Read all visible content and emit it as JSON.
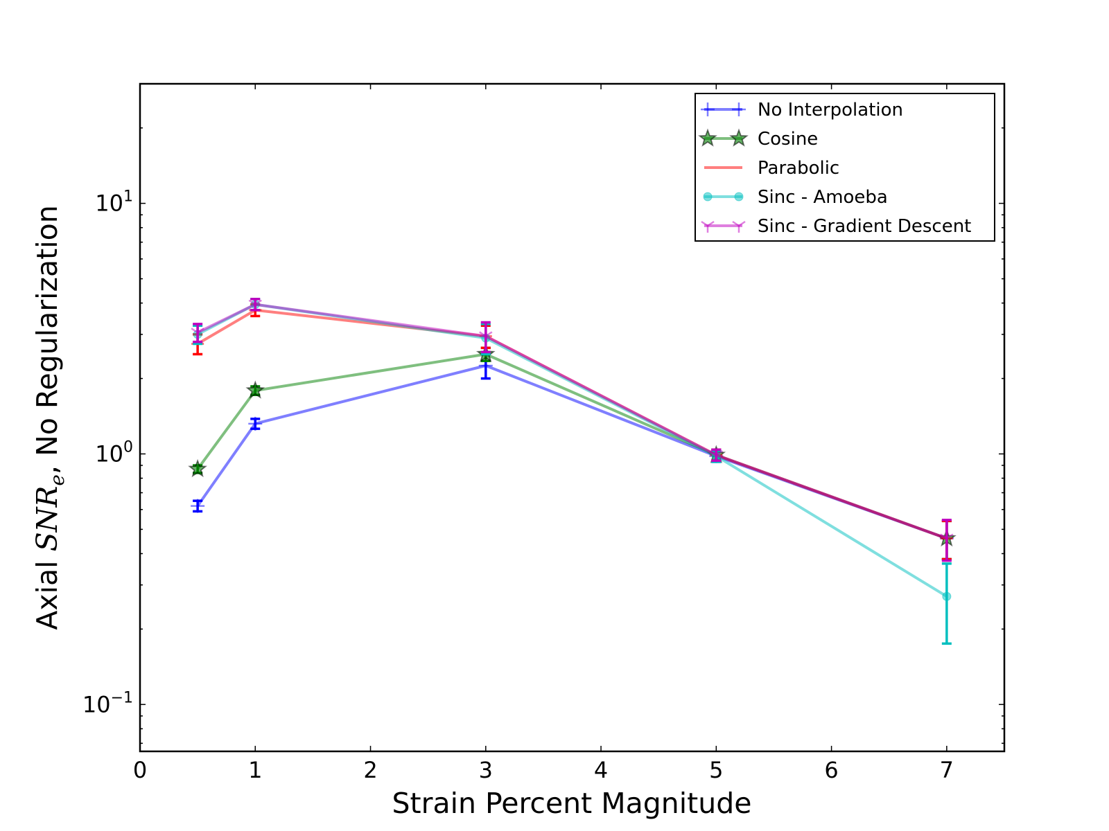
{
  "chart_data": {
    "type": "line",
    "xlabel": "Strain Percent Magnitude",
    "ylabel_prefix": "Axial ",
    "ylabel_math": "SNR",
    "ylabel_sub": "e",
    "ylabel_suffix": ", No Regularization",
    "xlim": [
      0,
      7.5
    ],
    "ylim": [
      0.065,
      30
    ],
    "yscale": "log",
    "grid": false,
    "legend_position": "top-right",
    "x_ticks": [
      0,
      1,
      2,
      3,
      4,
      5,
      6,
      7
    ],
    "x_tick_labels": [
      "0",
      "1",
      "2",
      "3",
      "4",
      "5",
      "6",
      "7"
    ],
    "y_ticks": [
      {
        "value": 0.1,
        "base": "10",
        "exp": "−1"
      },
      {
        "value": 1,
        "base": "10",
        "exp": "0"
      },
      {
        "value": 10,
        "base": "10",
        "exp": "1"
      }
    ],
    "x": [
      0.5,
      1,
      3,
      5,
      7
    ],
    "series": [
      {
        "name": "No Interpolation",
        "color": "#0000ff",
        "marker": "plus",
        "values": [
          0.62,
          1.32,
          2.25,
          0.98,
          0.46
        ],
        "errors": [
          0.03,
          0.06,
          0.25,
          0.05,
          0.08
        ]
      },
      {
        "name": "Cosine",
        "color": "#008000",
        "marker": "star",
        "values": [
          0.87,
          1.79,
          2.5,
          0.99,
          0.46
        ],
        "errors": [
          0.03,
          0.07,
          0.15,
          0.05,
          0.08
        ]
      },
      {
        "name": "Parabolic",
        "color": "#ff0000",
        "marker": "hline",
        "values": [
          2.75,
          3.75,
          2.95,
          0.99,
          0.46
        ],
        "errors": [
          0.25,
          0.2,
          0.3,
          0.05,
          0.08
        ]
      },
      {
        "name": "Sinc - Amoeba",
        "color": "#00bfbf",
        "marker": "circle",
        "values": [
          3.0,
          3.95,
          2.9,
          0.98,
          0.27
        ],
        "errors": [
          0.25,
          0.2,
          0.4,
          0.05,
          0.095
        ]
      },
      {
        "name": "Sinc - Gradient Descent",
        "color": "#bf00bf",
        "marker": "tri",
        "values": [
          3.05,
          3.95,
          2.95,
          0.99,
          0.46
        ],
        "errors": [
          0.25,
          0.2,
          0.4,
          0.05,
          0.085
        ]
      }
    ]
  }
}
